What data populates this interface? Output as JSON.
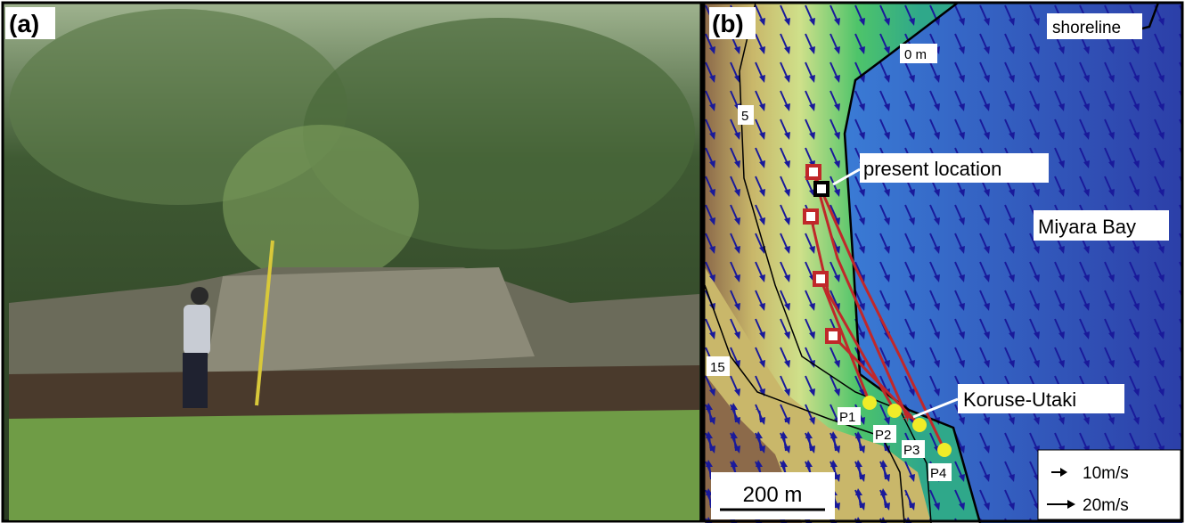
{
  "panels": {
    "a": {
      "label": "(a)"
    },
    "b": {
      "label": "(b)",
      "contours": {
        "shoreline_box": "shoreline",
        "zero": "0 m",
        "five": "5",
        "fifteen": "15"
      },
      "annotations": {
        "present": "present location",
        "bay": "Miyara Bay",
        "site": "Koruse-Utaki"
      },
      "points": [
        "P1",
        "P2",
        "P3",
        "P4"
      ],
      "legend": {
        "small": "10m/s",
        "large": "20m/s"
      },
      "scale": "200 m"
    }
  }
}
